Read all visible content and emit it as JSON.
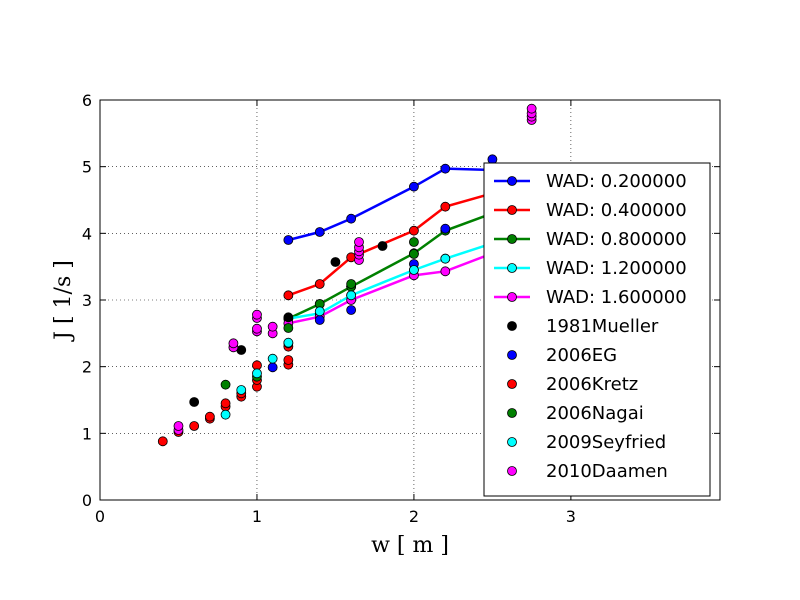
{
  "chart_data": {
    "type": "line",
    "xlabel": "w  [ m ]",
    "ylabel": "J  [ 1/s ]",
    "xlim": [
      0,
      3.95
    ],
    "ylim": [
      0,
      6
    ],
    "xticks": [
      0,
      1,
      2,
      3
    ],
    "yticks": [
      0,
      1,
      2,
      3,
      4,
      5,
      6
    ],
    "grid": true,
    "legend_position": "right",
    "series": [
      {
        "name": "WAD: 0.200000",
        "kind": "line",
        "color": "#0000ff",
        "x": [
          1.2,
          1.4,
          1.6,
          2.0,
          2.2,
          2.5
        ],
        "y": [
          3.9,
          4.02,
          4.22,
          4.7,
          4.97,
          4.95
        ]
      },
      {
        "name": "WAD: 0.400000",
        "kind": "line",
        "color": "#ff0000",
        "x": [
          1.2,
          1.4,
          1.6,
          2.0,
          2.2,
          2.5
        ],
        "y": [
          3.07,
          3.24,
          3.64,
          4.04,
          4.4,
          4.6
        ]
      },
      {
        "name": "WAD: 0.800000",
        "kind": "line",
        "color": "#008000",
        "x": [
          1.2,
          1.4,
          1.6,
          2.0,
          2.2,
          2.5
        ],
        "y": [
          2.72,
          2.94,
          3.2,
          3.7,
          4.04,
          4.3
        ]
      },
      {
        "name": "WAD: 1.200000",
        "kind": "line",
        "color": "#00ffff",
        "x": [
          1.2,
          1.4,
          1.6,
          2.0,
          2.2,
          2.5
        ],
        "y": [
          2.72,
          2.8,
          3.07,
          3.45,
          3.62,
          3.85
        ]
      },
      {
        "name": "WAD: 1.600000",
        "kind": "line",
        "color": "#ff00ff",
        "x": [
          1.2,
          1.4,
          1.6,
          2.0,
          2.2,
          2.5
        ],
        "y": [
          2.65,
          2.75,
          3.0,
          3.37,
          3.43,
          3.7
        ]
      },
      {
        "name": "1981Mueller",
        "kind": "scatter",
        "color": "#000000",
        "x": [
          0.6,
          0.9,
          1.2,
          1.5,
          1.8
        ],
        "y": [
          1.47,
          2.25,
          2.74,
          3.57,
          3.81
        ]
      },
      {
        "name": "2006EG",
        "kind": "scatter",
        "color": "#0000ff",
        "x": [
          1.1,
          1.4,
          1.6,
          2.0,
          2.2,
          2.5
        ],
        "y": [
          1.99,
          2.7,
          2.85,
          3.54,
          4.07,
          5.11
        ]
      },
      {
        "name": "2006Kretz",
        "kind": "scatter",
        "color": "#ff0000",
        "x": [
          0.4,
          0.5,
          0.6,
          0.7,
          0.7,
          0.8,
          0.8,
          0.9,
          0.9,
          1.0,
          1.0,
          1.0,
          1.2,
          1.2,
          1.2,
          1.2
        ],
        "y": [
          0.88,
          1.02,
          1.11,
          1.22,
          1.25,
          1.4,
          1.45,
          1.55,
          1.6,
          1.7,
          1.8,
          2.02,
          2.03,
          2.1,
          2.3,
          2.35
        ]
      },
      {
        "name": "2006Nagai",
        "kind": "scatter",
        "color": "#008000",
        "x": [
          0.8,
          1.0,
          1.2,
          1.4,
          1.6,
          1.6,
          2.0,
          2.0
        ],
        "y": [
          1.73,
          1.85,
          2.58,
          2.94,
          3.2,
          3.24,
          3.69,
          3.87
        ]
      },
      {
        "name": "2009Seyfried",
        "kind": "scatter",
        "color": "#00ffff",
        "x": [
          0.8,
          0.9,
          1.0,
          1.1,
          1.2,
          1.4,
          1.6,
          2.0,
          2.2
        ],
        "y": [
          1.28,
          1.65,
          1.9,
          2.12,
          2.36,
          2.83,
          3.07,
          3.45,
          3.62
        ]
      },
      {
        "name": "2010Daamen",
        "kind": "scatter",
        "color": "#ff00ff",
        "x": [
          0.5,
          0.5,
          0.85,
          0.85,
          1.0,
          1.0,
          1.0,
          1.0,
          1.1,
          1.1,
          1.65,
          1.65,
          1.65,
          1.65,
          1.65,
          2.75,
          2.75,
          2.75,
          2.75
        ],
        "y": [
          1.05,
          1.11,
          2.29,
          2.35,
          2.53,
          2.57,
          2.73,
          2.78,
          2.5,
          2.6,
          3.6,
          3.68,
          3.73,
          3.79,
          3.87,
          5.7,
          5.75,
          5.8,
          5.87
        ]
      }
    ]
  }
}
